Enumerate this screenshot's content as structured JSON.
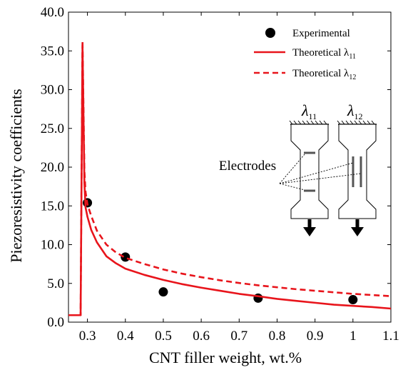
{
  "chart_data": {
    "type": "line",
    "xlabel": "CNT filler weight, wt.%",
    "ylabel": "Piezoresistivity coefficients",
    "xlim": [
      0.25,
      1.1
    ],
    "ylim": [
      0,
      40
    ],
    "x_ticks": [
      "0.3",
      "0.4",
      "0.5",
      "0.6",
      "0.7",
      "0.8",
      "0.9",
      "1",
      "1.1"
    ],
    "y_ticks": [
      "0.0",
      "5.0",
      "10.0",
      "15.0",
      "20.0",
      "25.0",
      "30.0",
      "35.0",
      "40.0"
    ],
    "grid": false,
    "legend_position": "top-right",
    "series": [
      {
        "name": "Experimental",
        "style": "scatter",
        "color": "#000000",
        "x": [
          0.3,
          0.4,
          0.5,
          0.75,
          1.0
        ],
        "y": [
          15.4,
          8.4,
          3.9,
          3.1,
          2.9
        ]
      },
      {
        "name": "Theoretical λ11",
        "style": "solid",
        "color": "#e8141b",
        "x": [
          0.25,
          0.282,
          0.282,
          0.287,
          0.292,
          0.295,
          0.3,
          0.31,
          0.325,
          0.35,
          0.375,
          0.4,
          0.45,
          0.5,
          0.55,
          0.6,
          0.65,
          0.7,
          0.75,
          0.8,
          0.85,
          0.9,
          0.95,
          1.0,
          1.05,
          1.1
        ],
        "y": [
          0.9,
          0.9,
          1.0,
          35.7,
          18.0,
          14.8,
          13.6,
          11.9,
          10.3,
          8.5,
          7.6,
          6.9,
          6.1,
          5.45,
          4.9,
          4.45,
          4.05,
          3.65,
          3.35,
          3.0,
          2.75,
          2.5,
          2.25,
          2.1,
          1.95,
          1.75
        ]
      },
      {
        "name": "Theoretical λ12",
        "style": "dashed",
        "color": "#e8141b",
        "x": [
          0.25,
          0.282,
          0.282,
          0.287,
          0.292,
          0.295,
          0.3,
          0.31,
          0.325,
          0.35,
          0.375,
          0.4,
          0.45,
          0.5,
          0.55,
          0.6,
          0.65,
          0.7,
          0.75,
          0.8,
          0.85,
          0.9,
          0.95,
          1.0,
          1.05,
          1.1
        ],
        "y": [
          0.9,
          0.9,
          1.0,
          36.3,
          19.5,
          16.8,
          15.2,
          13.7,
          11.8,
          10.0,
          9.0,
          8.3,
          7.5,
          6.8,
          6.25,
          5.8,
          5.4,
          5.05,
          4.75,
          4.5,
          4.25,
          4.05,
          3.85,
          3.65,
          3.5,
          3.35
        ]
      }
    ],
    "legend": [
      {
        "label": "Experimental",
        "marker": "circle"
      },
      {
        "label": "Theoretical λ",
        "subscript": "11",
        "line": "solid"
      },
      {
        "label": "Theoretical λ",
        "subscript": "12",
        "line": "dashed"
      }
    ],
    "inset": {
      "labels": [
        "λ",
        "λ"
      ],
      "subscripts": [
        "11",
        "12"
      ],
      "electrodes_label": "Electrodes"
    }
  }
}
